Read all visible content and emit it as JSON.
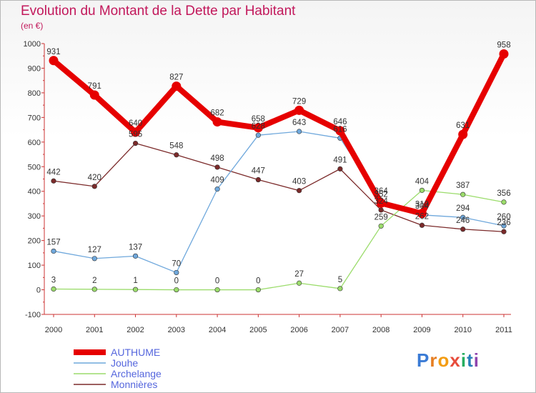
{
  "header": {
    "title": "Evolution du Montant de la Dette par Habitant",
    "subtitle": "(en €)"
  },
  "logo": {
    "letters": [
      "P",
      "r",
      "o",
      "x",
      "i",
      "t",
      "i"
    ],
    "colors": [
      "#3a7bd5",
      "#e67e22",
      "#f39c12",
      "#e74c3c",
      "#27ae60",
      "#2980b9",
      "#8e44ad"
    ]
  },
  "chart_data": {
    "type": "line",
    "categories": [
      "2000",
      "2001",
      "2002",
      "2003",
      "2004",
      "2005",
      "2006",
      "2007",
      "2008",
      "2009",
      "2010",
      "2011"
    ],
    "ylim": [
      -100,
      1000
    ],
    "yticks": [
      "-100",
      "0",
      "100",
      "200",
      "300",
      "400",
      "500",
      "600",
      "700",
      "800",
      "900",
      "1000"
    ],
    "grid": false,
    "legend": "bottom-left",
    "series": [
      {
        "name": "AUTHUME",
        "color": "#e60000",
        "values": [
          931,
          791,
          640,
          827,
          682,
          658,
          729,
          646,
          352,
          310,
          631,
          958
        ],
        "labels": [
          "931",
          "791",
          "640",
          "827",
          "682",
          "658",
          "729",
          "646",
          "352",
          "310",
          "631",
          "958"
        ]
      },
      {
        "name": "Jouhe",
        "color": "#6fa8dc",
        "values": [
          157,
          127,
          137,
          70,
          409,
          628,
          643,
          616,
          364,
          304,
          294,
          260
        ],
        "labels": [
          "157",
          "127",
          "137",
          "70",
          "409",
          "628",
          "643",
          "616",
          "364",
          "304",
          "294",
          "260"
        ]
      },
      {
        "name": "Archelange",
        "color": "#9bdc6b",
        "values": [
          3,
          2,
          1,
          0,
          0,
          0,
          27,
          5,
          259,
          404,
          387,
          356
        ],
        "labels": [
          "3",
          "2",
          "1",
          "0",
          "0",
          "0",
          "27",
          "5",
          "259",
          "404",
          "387",
          "356"
        ]
      },
      {
        "name": "Monnières",
        "color": "#7b2a2a",
        "values": [
          442,
          420,
          595,
          548,
          498,
          447,
          403,
          491,
          324,
          262,
          246,
          236
        ],
        "labels": [
          "442",
          "420",
          "595",
          "548",
          "498",
          "447",
          "403",
          "491",
          "324",
          "262",
          "246",
          "236"
        ]
      }
    ]
  }
}
